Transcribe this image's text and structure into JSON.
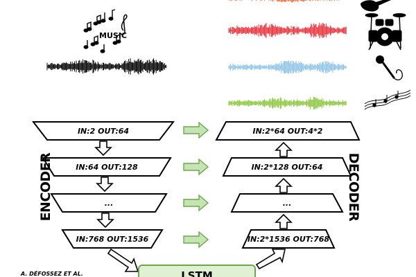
{
  "header": {
    "music_label": "MUSIC"
  },
  "encoder": {
    "label": "ENCODER",
    "layers": [
      "IN:2 OUT:64",
      "IN:64 OUT:128",
      "...",
      "IN:768 OUT:1536"
    ]
  },
  "decoder": {
    "label": "DECODER",
    "layers": [
      "IN:2*64 OUT:4*2",
      "IN:2*128 OUT:64",
      "...",
      "IN:2*1536 OUT:768"
    ]
  },
  "bottleneck": {
    "label": "LSTM"
  },
  "credit": "A. DÉFOSSEZ ET AL.",
  "stems": [
    {
      "name": "bass",
      "color": "#ef6b3a",
      "icon": "bass-guitar-icon"
    },
    {
      "name": "drums",
      "color": "#e8303a",
      "icon": "drums-icon"
    },
    {
      "name": "vocals",
      "color": "#8fc4e6",
      "icon": "microphone-icon"
    },
    {
      "name": "other",
      "color": "#8cc63f",
      "icon": "music-notes-icon"
    }
  ],
  "colors": {
    "skip_arrow_fill": "#c6e3b4",
    "skip_arrow_stroke": "#6aa84f",
    "lstm_fill": "#dff0d3",
    "lstm_stroke": "#6aa84f",
    "mix_wave": "#000000"
  }
}
